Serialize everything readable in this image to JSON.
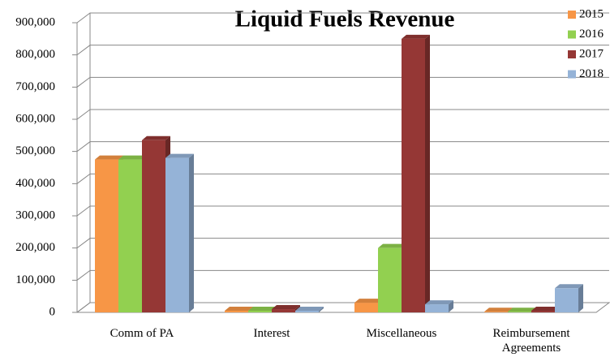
{
  "chart_data": {
    "type": "bar3d",
    "title": "Liquid Fuels Revenue",
    "categories": [
      "Comm of PA",
      "Interest",
      "Miscellaneous",
      "Reimbursement Agreements"
    ],
    "series": [
      {
        "name": "2015",
        "color": "#f79646",
        "values": [
          475000,
          5000,
          30000,
          2000
        ]
      },
      {
        "name": "2016",
        "color": "#92d050",
        "values": [
          475000,
          5000,
          200000,
          2000
        ]
      },
      {
        "name": "2017",
        "color": "#953735",
        "values": [
          535000,
          10000,
          850000,
          5000
        ]
      },
      {
        "name": "2018",
        "color": "#95b3d7",
        "values": [
          480000,
          5000,
          25000,
          75000
        ]
      }
    ],
    "ylim": [
      0,
      900000
    ],
    "yticks": [
      0,
      {
        "value": 100000,
        "label": "100,000"
      },
      {
        "value": 200000,
        "label": "200,000"
      },
      {
        "value": 300000,
        "label": "300,000"
      },
      {
        "value": 400000,
        "label": "400,000"
      },
      {
        "value": 500000,
        "label": "500,000"
      },
      {
        "value": 600000,
        "label": "600,000"
      },
      {
        "value": 700000,
        "label": "700,000"
      },
      {
        "value": 800000,
        "label": "800,000"
      },
      {
        "value": 900000,
        "label": "900,000"
      }
    ],
    "grid": true,
    "legend": "top-right"
  }
}
